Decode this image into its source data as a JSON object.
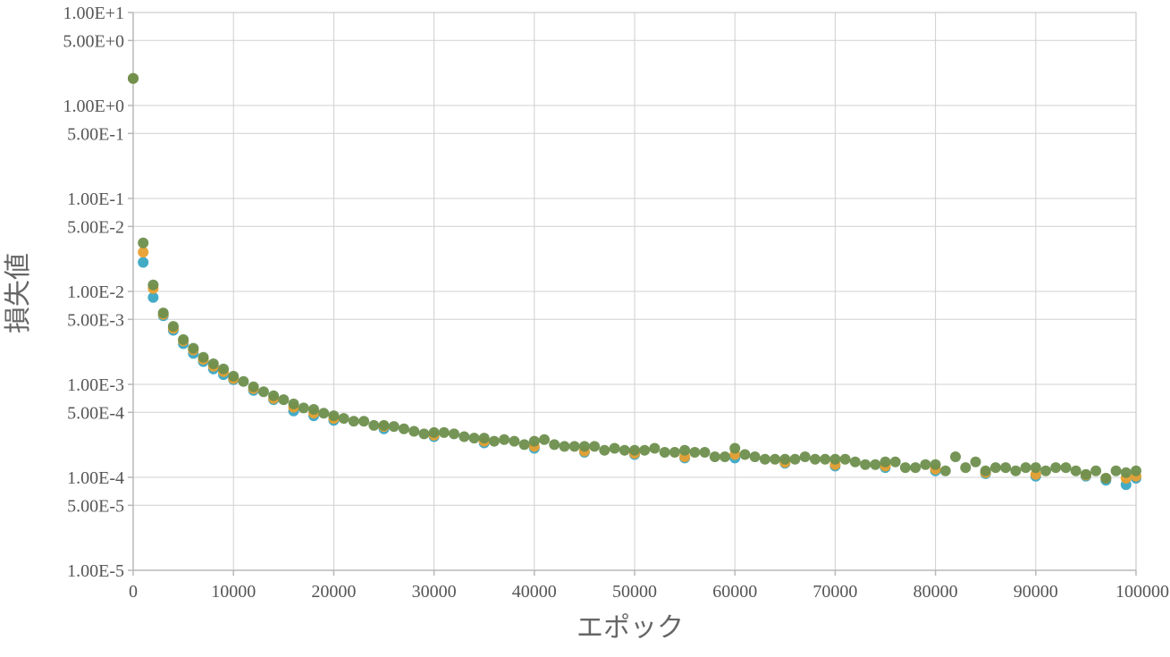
{
  "chart_data": {
    "type": "scatter",
    "title": "",
    "xlabel": "エポック",
    "ylabel": "損失値",
    "x_scale": "linear",
    "y_scale": "log",
    "xlim": [
      0,
      100000
    ],
    "ylim": [
      1e-05,
      10
    ],
    "grid": true,
    "legend": "none",
    "x_ticks": [
      "0",
      "10000",
      "20000",
      "30000",
      "40000",
      "50000",
      "60000",
      "70000",
      "80000",
      "90000",
      "100000"
    ],
    "y_ticks": [
      {
        "value": 10,
        "label": "1.00E+1"
      },
      {
        "value": 5,
        "label": "5.00E+0"
      },
      {
        "value": 1,
        "label": "1.00E+0"
      },
      {
        "value": 0.5,
        "label": "5.00E-1"
      },
      {
        "value": 0.1,
        "label": "1.00E-1"
      },
      {
        "value": 0.05,
        "label": "5.00E-2"
      },
      {
        "value": 0.01,
        "label": "1.00E-2"
      },
      {
        "value": 0.005,
        "label": "5.00E-3"
      },
      {
        "value": 0.001,
        "label": "1.00E-3"
      },
      {
        "value": 0.0005,
        "label": "5.00E-4"
      },
      {
        "value": 0.0001,
        "label": "1.00E-4"
      },
      {
        "value": 5e-05,
        "label": "5.00E-5"
      },
      {
        "value": 1e-05,
        "label": "1.00E-5"
      }
    ],
    "series": [
      {
        "color": "#3aa6c4",
        "x": [
          0,
          1000,
          2000,
          3000,
          4000,
          5000,
          6000,
          7000,
          8000,
          9000,
          10000,
          12000,
          14000,
          16000,
          18000,
          20000,
          25000,
          30000,
          35000,
          40000,
          45000,
          50000,
          55000,
          60000,
          65000,
          70000,
          75000,
          80000,
          85000,
          90000,
          95000,
          97000,
          99000,
          100000
        ],
        "y": [
          2.0,
          0.021,
          0.0088,
          0.0056,
          0.0039,
          0.0028,
          0.0022,
          0.0018,
          0.0015,
          0.0013,
          0.00115,
          0.00088,
          0.0007,
          0.00053,
          0.00047,
          0.00042,
          0.00034,
          0.00028,
          0.00024,
          0.00021,
          0.00019,
          0.00018,
          0.000165,
          0.000165,
          0.000145,
          0.000135,
          0.00013,
          0.00012,
          0.000112,
          0.000105,
          0.000105,
          9.5e-05,
          8.5e-05,
          0.0001
        ]
      },
      {
        "color": "#e8a030",
        "x": [
          0,
          1000,
          2000,
          3000,
          4000,
          5000,
          6000,
          7000,
          8000,
          9000,
          10000,
          12000,
          14000,
          16000,
          18000,
          20000,
          25000,
          30000,
          35000,
          40000,
          45000,
          50000,
          55000,
          60000,
          65000,
          70000,
          75000,
          80000,
          85000,
          90000,
          95000,
          97000,
          99000,
          100000
        ],
        "y": [
          2.0,
          0.027,
          0.011,
          0.0058,
          0.0041,
          0.003,
          0.0024,
          0.0019,
          0.0016,
          0.0014,
          0.00118,
          0.00092,
          0.00072,
          0.00058,
          0.0005,
          0.00044,
          0.00036,
          0.00029,
          0.00025,
          0.00022,
          0.000195,
          0.000185,
          0.00017,
          0.00018,
          0.000148,
          0.00014,
          0.000135,
          0.000125,
          0.000115,
          0.00011,
          0.000108,
          0.0001,
          0.0001,
          0.000105
        ]
      },
      {
        "color": "#6e8f4e",
        "x": [
          0,
          1000,
          2000,
          3000,
          4000,
          5000,
          6000,
          7000,
          8000,
          9000,
          10000,
          11000,
          12000,
          13000,
          14000,
          15000,
          16000,
          17000,
          18000,
          19000,
          20000,
          21000,
          22000,
          23000,
          24000,
          25000,
          26000,
          27000,
          28000,
          29000,
          30000,
          31000,
          32000,
          33000,
          34000,
          35000,
          36000,
          37000,
          38000,
          39000,
          40000,
          41000,
          42000,
          43000,
          44000,
          45000,
          46000,
          47000,
          48000,
          49000,
          50000,
          51000,
          52000,
          53000,
          54000,
          55000,
          56000,
          57000,
          58000,
          59000,
          60000,
          61000,
          62000,
          63000,
          64000,
          65000,
          66000,
          67000,
          68000,
          69000,
          70000,
          71000,
          72000,
          73000,
          74000,
          75000,
          76000,
          77000,
          78000,
          79000,
          80000,
          81000,
          82000,
          83000,
          84000,
          85000,
          86000,
          87000,
          88000,
          89000,
          90000,
          91000,
          92000,
          93000,
          94000,
          95000,
          96000,
          97000,
          98000,
          99000,
          100000
        ],
        "y": [
          2.0,
          0.034,
          0.012,
          0.006,
          0.0043,
          0.0031,
          0.0025,
          0.002,
          0.0017,
          0.0015,
          0.00125,
          0.0011,
          0.00096,
          0.00085,
          0.00077,
          0.0007,
          0.00063,
          0.00057,
          0.00055,
          0.0005,
          0.00047,
          0.00044,
          0.00041,
          0.00041,
          0.00037,
          0.00037,
          0.00036,
          0.00034,
          0.00032,
          0.0003,
          0.00031,
          0.00031,
          0.0003,
          0.00028,
          0.00027,
          0.00027,
          0.00025,
          0.00026,
          0.00025,
          0.00023,
          0.00025,
          0.00026,
          0.00023,
          0.00022,
          0.00022,
          0.00022,
          0.00022,
          0.0002,
          0.00021,
          0.0002,
          0.0002,
          0.0002,
          0.00021,
          0.00019,
          0.00019,
          0.0002,
          0.00019,
          0.00019,
          0.00017,
          0.00017,
          0.00021,
          0.00018,
          0.00017,
          0.00016,
          0.00016,
          0.00016,
          0.00016,
          0.00017,
          0.00016,
          0.00016,
          0.00016,
          0.00016,
          0.00015,
          0.00014,
          0.00014,
          0.00015,
          0.00015,
          0.00013,
          0.00013,
          0.00014,
          0.00014,
          0.00012,
          0.00017,
          0.00013,
          0.00015,
          0.00012,
          0.00013,
          0.00013,
          0.00012,
          0.00013,
          0.00013,
          0.00012,
          0.00013,
          0.00013,
          0.00012,
          0.00011,
          0.00012,
          0.0001,
          0.00012,
          0.000115,
          0.00012
        ]
      }
    ]
  }
}
